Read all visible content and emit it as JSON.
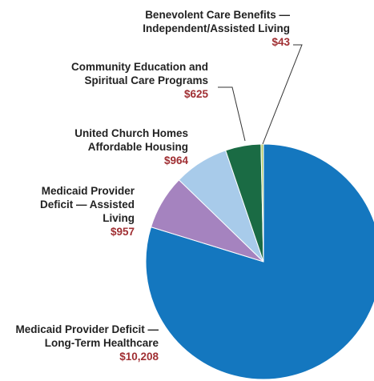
{
  "chart_data": {
    "type": "pie",
    "categories": [
      "Medicaid Provider Deficit — Long-Term Healthcare",
      "Medicaid Provider Deficit — Assisted Living",
      "United Church Homes Affordable Housing",
      "Community Education and Spiritual Care Programs",
      "Benevolent Care Benefits — Independent/Assisted Living"
    ],
    "values": [
      10208,
      957,
      964,
      625,
      43
    ],
    "value_labels": [
      "$10,208",
      "$957",
      "$964",
      "$625",
      "$43"
    ],
    "colors": [
      "#1477bf",
      "#a583bf",
      "#a8cbea",
      "#1a6b44",
      "#b9cd6a"
    ],
    "value_color": "#a02f33",
    "start": "12 o'clock",
    "direction": "clockwise",
    "legend": "none (direct labels)"
  },
  "labels": [
    {
      "lines": [
        "Medicaid Provider Deficit —",
        "Long-Term Healthcare"
      ],
      "value": "$10,208"
    },
    {
      "lines": [
        "Medicaid Provider",
        "Deficit — Assisted",
        "Living"
      ],
      "value": "$957"
    },
    {
      "lines": [
        "United Church Homes",
        "Affordable Housing"
      ],
      "value": "$964"
    },
    {
      "lines": [
        "Community Education and",
        "Spiritual Care Programs"
      ],
      "value": "$625"
    },
    {
      "lines": [
        "Benevolent Care Benefits —",
        "Independent/Assisted Living"
      ],
      "value": "$43"
    }
  ]
}
